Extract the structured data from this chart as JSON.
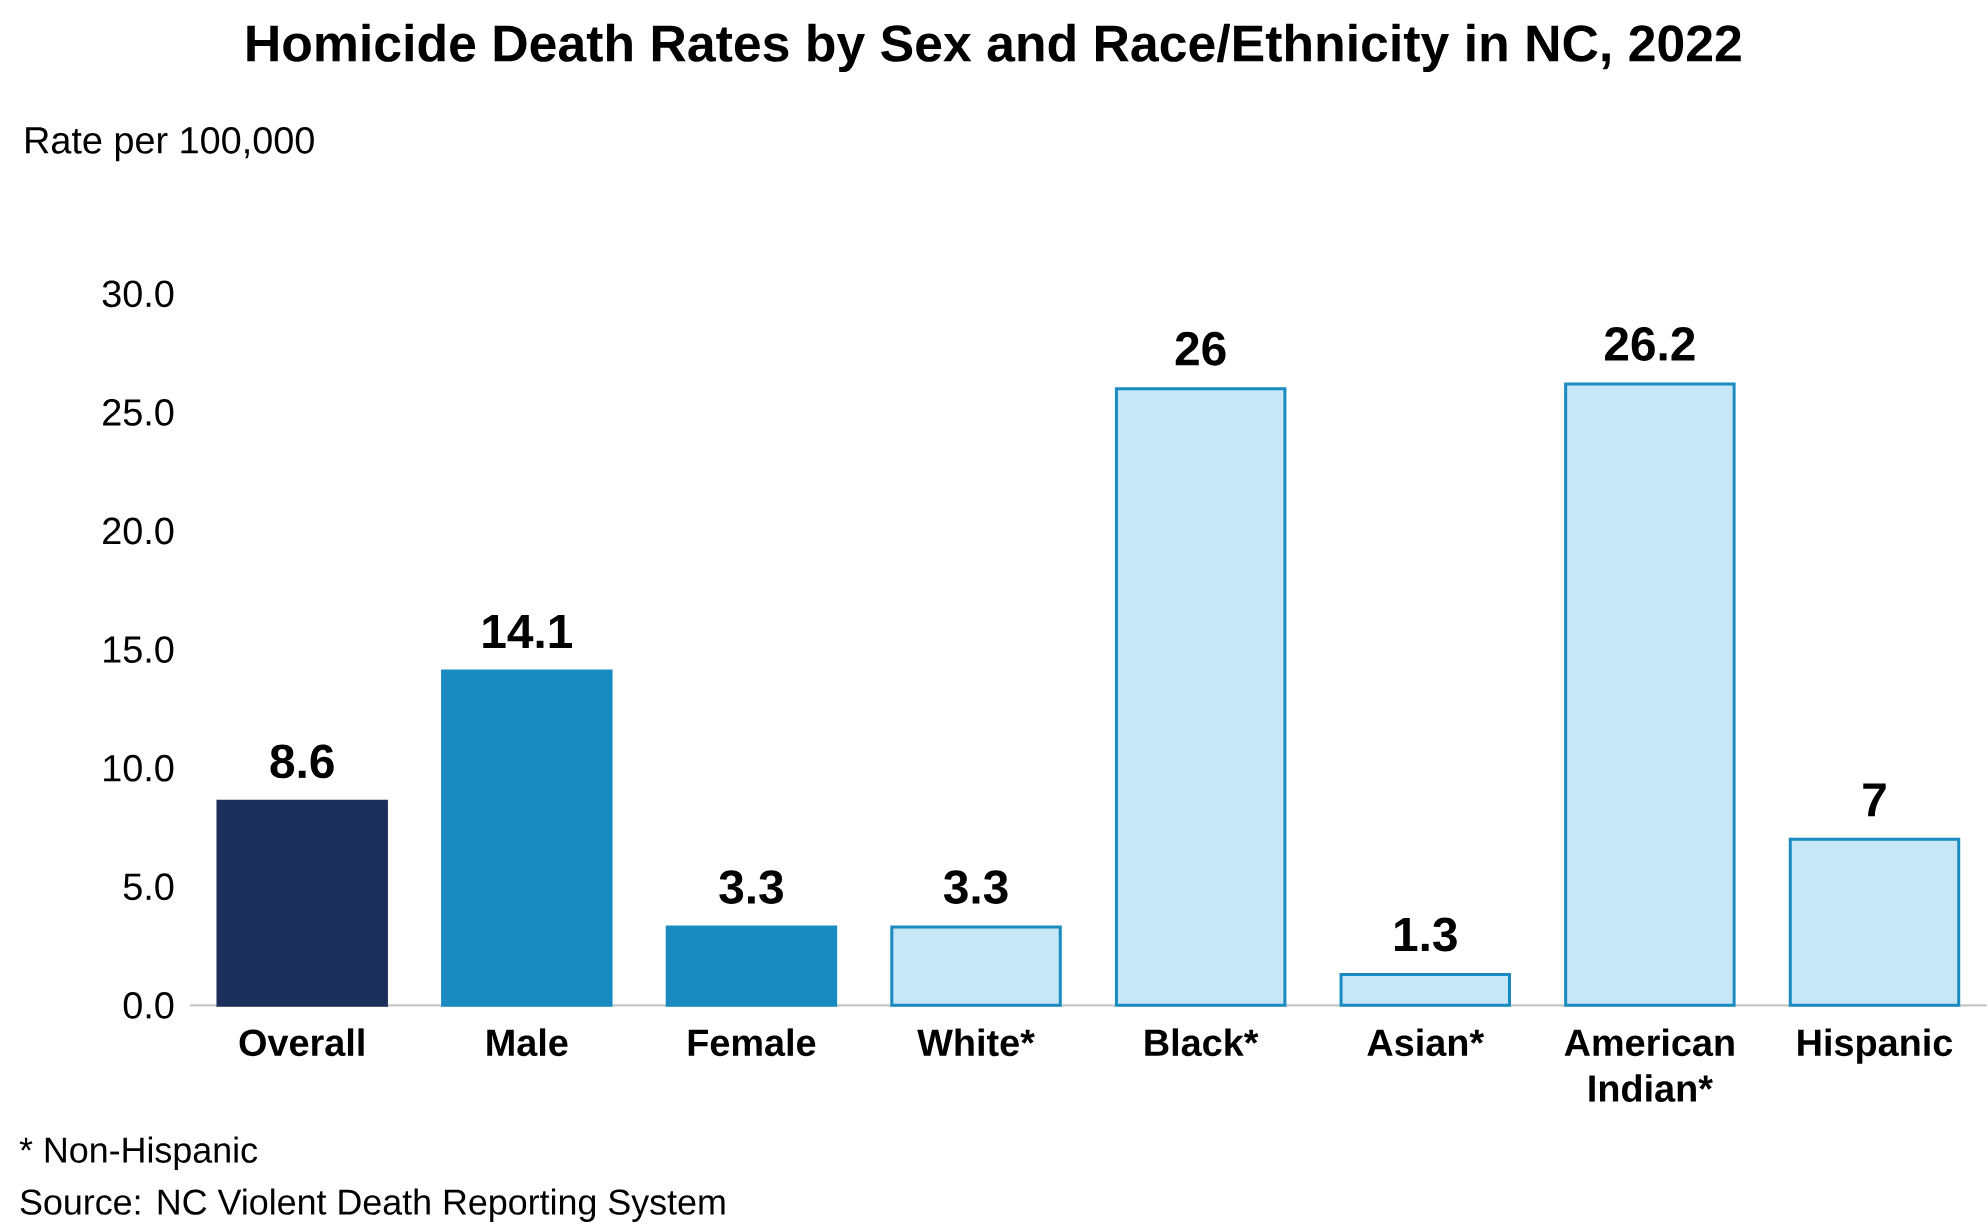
{
  "chart_data": {
    "type": "bar",
    "title": "Homicide Death Rates by Sex and Race/Ethnicity in NC, 2022",
    "ylabel": "Rate per 100,000",
    "categories": [
      "Overall",
      "Male",
      "Female",
      "White*",
      "Black*",
      "Asian*",
      "American Indian*",
      "Hispanic"
    ],
    "values": [
      8.6,
      14.1,
      3.3,
      3.3,
      26,
      1.3,
      26.2,
      7
    ],
    "colors": [
      "#1b2f5a",
      "#1a8bc0",
      "#1a8bc0",
      "#c7e7f7",
      "#c7e7f7",
      "#c7e7f7",
      "#c7e7f7",
      "#c7e7f7"
    ],
    "value_labels": [
      "8.6",
      "14.1",
      "3.3",
      "3.3",
      "26",
      "1.3",
      "26.2",
      "7"
    ],
    "ylim": [
      0,
      30
    ],
    "yticks": [
      {
        "value": 0,
        "label": "0.0"
      },
      {
        "value": 5,
        "label": "5.0"
      },
      {
        "value": 10,
        "label": "10.0"
      },
      {
        "value": 15,
        "label": "15.0"
      },
      {
        "value": 20,
        "label": "20.0"
      },
      {
        "value": 25,
        "label": "25.0"
      },
      {
        "value": 30,
        "label": "30.0"
      }
    ],
    "grid": false,
    "annotations": [
      "* Non-Hispanic",
      "Source: NC Violent Death Reporting System"
    ]
  }
}
